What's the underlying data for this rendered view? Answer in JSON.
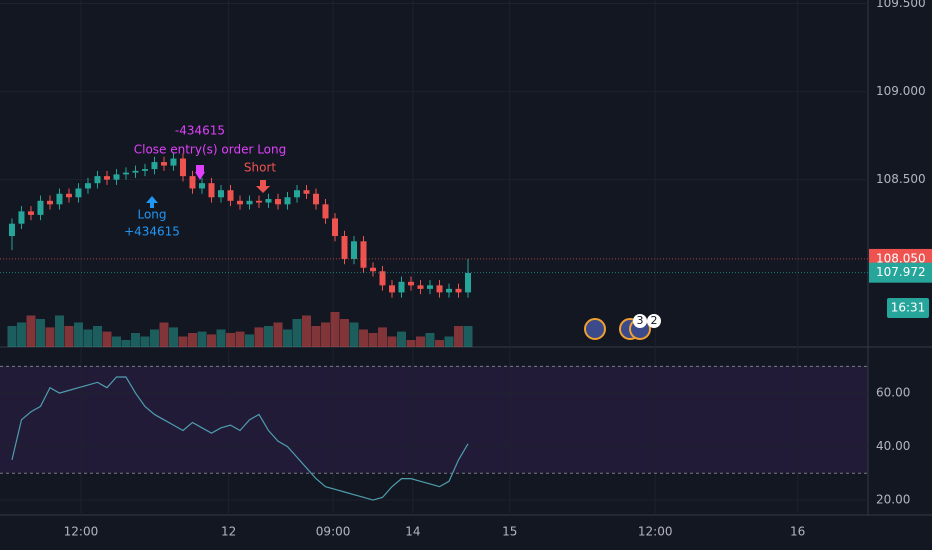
{
  "chart_data": {
    "type": "candlestick",
    "xlim": [
      -1.26,
      90.1
    ],
    "xticks": [
      {
        "value": 7.26,
        "label": "12:00"
      },
      {
        "value": 22.8,
        "label": "12"
      },
      {
        "value": 33.8,
        "label": "09:00"
      },
      {
        "value": 42.2,
        "label": "14"
      },
      {
        "value": 52.4,
        "label": "15"
      },
      {
        "value": 67.7,
        "label": "12:00"
      },
      {
        "value": 82.7,
        "label": "16"
      }
    ],
    "ylim": [
      107.55,
      109.52
    ],
    "yticks": [
      {
        "value": 108.5,
        "label": "108.500"
      },
      {
        "value": 109,
        "label": "109.000"
      },
      {
        "value": 109.5,
        "label": "109.500"
      }
    ],
    "open": [
      108.18,
      108.25,
      108.32,
      108.3,
      108.38,
      108.36,
      108.42,
      108.4,
      108.45,
      108.48,
      108.52,
      108.5,
      108.53,
      108.54,
      108.55,
      108.56,
      108.6,
      108.58,
      108.62,
      108.52,
      108.45,
      108.48,
      108.4,
      108.44,
      108.38,
      108.36,
      108.38,
      108.37,
      108.39,
      108.36,
      108.4,
      108.44,
      108.42,
      108.36,
      108.28,
      108.18,
      108.05,
      108.15,
      108.0,
      107.98,
      107.9,
      107.86,
      107.92,
      107.9,
      107.88,
      107.9,
      107.86,
      107.88,
      107.86
    ],
    "close": [
      108.25,
      108.32,
      108.3,
      108.38,
      108.36,
      108.42,
      108.4,
      108.45,
      108.48,
      108.52,
      108.5,
      108.53,
      108.54,
      108.55,
      108.56,
      108.6,
      108.58,
      108.62,
      108.52,
      108.45,
      108.48,
      108.4,
      108.44,
      108.38,
      108.36,
      108.38,
      108.37,
      108.39,
      108.36,
      108.4,
      108.44,
      108.42,
      108.36,
      108.28,
      108.18,
      108.05,
      108.15,
      108.0,
      107.98,
      107.9,
      107.86,
      107.92,
      107.9,
      107.88,
      107.9,
      107.86,
      107.88,
      107.86,
      107.97
    ],
    "high": [
      108.28,
      108.35,
      108.35,
      108.41,
      108.41,
      108.45,
      108.45,
      108.48,
      108.51,
      108.55,
      108.55,
      108.56,
      108.57,
      108.58,
      108.59,
      108.63,
      108.63,
      108.65,
      108.65,
      108.55,
      108.51,
      108.51,
      108.47,
      108.47,
      108.41,
      108.41,
      108.41,
      108.42,
      108.42,
      108.43,
      108.47,
      108.47,
      108.45,
      108.39,
      108.31,
      108.21,
      108.18,
      108.18,
      108.03,
      108.01,
      107.93,
      107.95,
      107.95,
      107.93,
      107.93,
      107.93,
      107.91,
      107.91,
      108.05
    ],
    "low": [
      108.1,
      108.22,
      108.27,
      108.27,
      108.33,
      108.33,
      108.37,
      108.37,
      108.42,
      108.45,
      108.47,
      108.47,
      108.5,
      108.51,
      108.52,
      108.53,
      108.55,
      108.55,
      108.49,
      108.42,
      108.42,
      108.37,
      108.37,
      108.35,
      108.33,
      108.33,
      108.34,
      108.34,
      108.33,
      108.33,
      108.37,
      108.39,
      108.33,
      108.25,
      108.15,
      108.02,
      108.02,
      107.97,
      107.95,
      107.87,
      107.83,
      107.83,
      107.87,
      107.85,
      107.85,
      107.83,
      107.83,
      107.83,
      107.83
    ],
    "up_color": "#26a69a",
    "down_color": "#ef5350",
    "volume": [
      30,
      35,
      45,
      40,
      28,
      45,
      30,
      35,
      25,
      30,
      22,
      15,
      10,
      20,
      15,
      25,
      35,
      28,
      15,
      20,
      22,
      18,
      25,
      20,
      22,
      18,
      28,
      30,
      35,
      25,
      40,
      45,
      30,
      35,
      50,
      40,
      35,
      25,
      20,
      28,
      15,
      22,
      10,
      15,
      20,
      10,
      15,
      30,
      30
    ],
    "volume_ylim": [
      0,
      100
    ],
    "rsi": [
      35,
      50,
      53,
      55,
      62,
      60,
      61,
      62,
      63,
      64,
      62,
      66,
      66,
      60,
      55,
      52,
      50,
      48,
      46,
      49,
      47,
      45,
      47,
      48,
      46,
      50,
      52,
      46,
      42,
      40,
      36,
      32,
      28,
      25,
      24,
      23,
      22,
      21,
      20,
      21,
      25,
      28,
      28,
      27,
      26,
      25,
      27,
      35,
      41
    ],
    "rsi_color": "#4f9dae",
    "rsi_ylim": [
      14.4,
      76.1
    ],
    "rsi_yticks": [
      {
        "value": 20,
        "label": "20.00"
      },
      {
        "value": 40,
        "label": "40.00"
      },
      {
        "value": 60,
        "label": "60.00"
      }
    ],
    "rsi_bands": [
      30,
      70
    ],
    "price_labels": [
      {
        "value": 108.05,
        "label": "108.050",
        "color": "#ef5350"
      },
      {
        "value": 107.972,
        "color": "#26a69a"
      }
    ],
    "countdown": "16:31",
    "annotations": {
      "close_pnl": "-434615",
      "close_order": "Close entry(s) order Long",
      "short": "Short",
      "long": "Long",
      "long_pnl": "+434615"
    },
    "badges": [
      "3",
      "2"
    ]
  }
}
